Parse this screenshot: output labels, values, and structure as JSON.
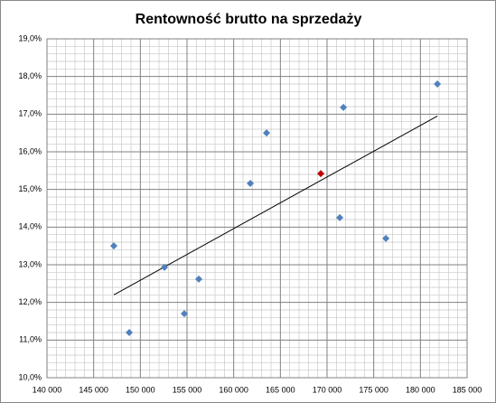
{
  "chart_data": {
    "type": "scatter",
    "title": "Rentowność brutto na sprzedaży",
    "x": [
      147160,
      148810,
      152580,
      154710,
      156260,
      161780,
      163520,
      169330,
      171360,
      171750,
      176300,
      181820
    ],
    "values": [
      13.5,
      11.2,
      12.93,
      11.7,
      12.62,
      15.16,
      16.5,
      15.42,
      14.25,
      17.18,
      13.7,
      17.8
    ],
    "point_colors": [
      "#4f81bd",
      "#4f81bd",
      "#4f81bd",
      "#4f81bd",
      "#4f81bd",
      "#4f81bd",
      "#4f81bd",
      "#c00000",
      "#4f81bd",
      "#4f81bd",
      "#4f81bd",
      "#4f81bd"
    ],
    "trendline": {
      "x": [
        147160,
        181820
      ],
      "values": [
        12.2,
        16.95
      ],
      "color": "#000000"
    },
    "xlim": [
      140000,
      185000
    ],
    "xticks": [
      {
        "value": 140000,
        "label": "140 000"
      },
      {
        "value": 145000,
        "label": "145 000"
      },
      {
        "value": 150000,
        "label": "150 000"
      },
      {
        "value": 155000,
        "label": "155 000"
      },
      {
        "value": 160000,
        "label": "160 000"
      },
      {
        "value": 165000,
        "label": "165 000"
      },
      {
        "value": 170000,
        "label": "170 000"
      },
      {
        "value": 175000,
        "label": "175 000"
      },
      {
        "value": 180000,
        "label": "180 000"
      },
      {
        "value": 185000,
        "label": "185 000"
      }
    ],
    "ylim": [
      10,
      19
    ],
    "yticks": [
      {
        "value": 10,
        "label": "10,0%"
      },
      {
        "value": 11,
        "label": "11,0%"
      },
      {
        "value": 12,
        "label": "12,0%"
      },
      {
        "value": 13,
        "label": "13,0%"
      },
      {
        "value": 14,
        "label": "14,0%"
      },
      {
        "value": 15,
        "label": "15,0%"
      },
      {
        "value": 16,
        "label": "16,0%"
      },
      {
        "value": 17,
        "label": "17,0%"
      },
      {
        "value": 18,
        "label": "18,0%"
      },
      {
        "value": 19,
        "label": "19,0%"
      }
    ],
    "grid": true,
    "minor_divisions": 5
  }
}
